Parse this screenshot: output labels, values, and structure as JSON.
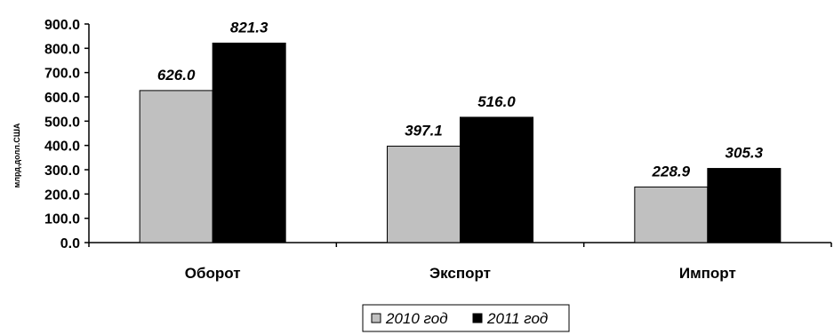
{
  "chart_data": {
    "type": "bar",
    "title": "",
    "xlabel": "",
    "ylabel": "млрд.долл.США",
    "categories": [
      "Оборот",
      "Экспорт",
      "Импорт"
    ],
    "series": [
      {
        "name": "2010 год",
        "values": [
          626.0,
          397.1,
          228.9
        ],
        "color": "#c0c0c0"
      },
      {
        "name": "2011 год",
        "values": [
          821.3,
          516.0,
          305.3
        ],
        "color": "#000000"
      }
    ],
    "ylim": [
      0,
      900
    ],
    "yticks": [
      "0.0",
      "100.0",
      "200.0",
      "300.0",
      "400.0",
      "500.0",
      "600.0",
      "700.0",
      "800.0",
      "900.0"
    ],
    "data_labels": [
      [
        "626.0",
        "397.1",
        "228.9"
      ],
      [
        "821.3",
        "516.0",
        "305.3"
      ]
    ],
    "grid": false,
    "legend_position": "bottom-center"
  }
}
